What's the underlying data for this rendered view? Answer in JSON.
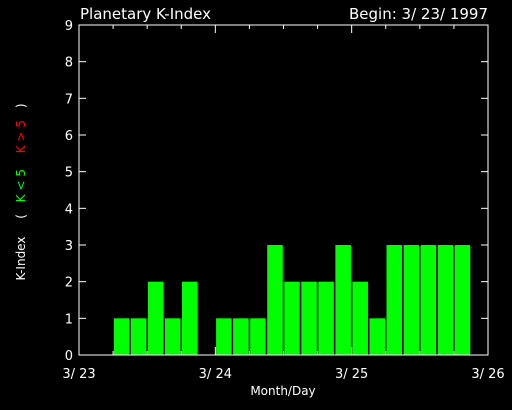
{
  "chart_data": {
    "type": "bar",
    "title": "Planetary K-Index",
    "begin_label": "Begin: 3/ 23/ 1997",
    "xlabel": "Month/Day",
    "ylabel": {
      "prefix": "K-Index",
      "open_paren": "(",
      "low_label": "K < 5",
      "high_label": "K > 5",
      "close_paren": ")"
    },
    "ylim": [
      0,
      9
    ],
    "yticks": [
      "0",
      "1",
      "2",
      "3",
      "4",
      "5",
      "6",
      "7",
      "8",
      "9"
    ],
    "xlim_days": [
      0,
      3
    ],
    "xticks": [
      "3/ 23",
      "3/ 24",
      "3/ 25",
      "3/ 26"
    ],
    "bar_interval_hours": 3,
    "values": [
      0,
      0,
      1,
      1,
      2,
      1,
      2,
      0,
      1,
      1,
      1,
      3,
      2,
      2,
      2,
      3,
      2,
      1,
      3,
      3,
      3,
      3,
      3,
      0
    ],
    "colors": {
      "background": "#000000",
      "axes": "#ffffff",
      "text": "#ffffff",
      "bar_low": "#00ff00",
      "bar_high": "#ff0000",
      "label_low": "#00ff00",
      "label_high": "#ff0000"
    },
    "threshold": 5
  }
}
